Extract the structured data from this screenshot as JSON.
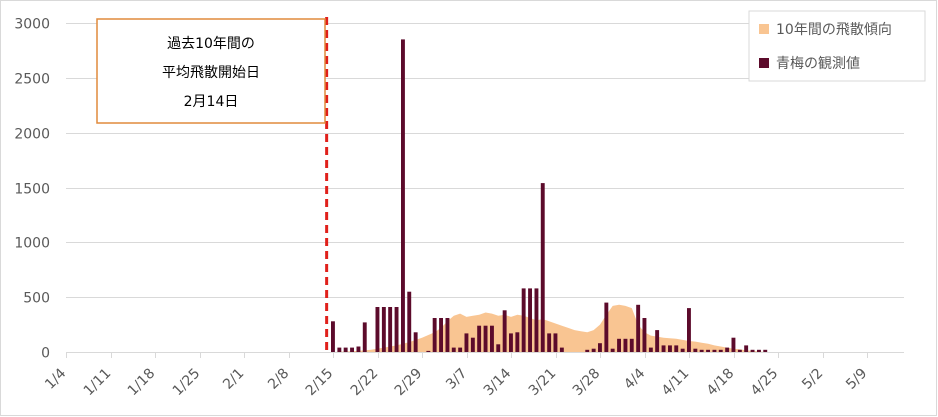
{
  "colors": {
    "observed_bar": "#5c0b2b",
    "trend_area": "#f9c592",
    "start_line": "#e0201b",
    "note_border": "#e08a3c",
    "grid": "#d9d9d9",
    "axis_text": "#595959"
  },
  "annotation": {
    "line1": "過去10年間の",
    "line2": "平均飛散開始日",
    "line3": "2月14日"
  },
  "chart_data": {
    "type": "bar",
    "x_is_date": true,
    "x_ticks": [
      "1/4",
      "1/11",
      "1/18",
      "1/25",
      "2/1",
      "2/8",
      "2/15",
      "2/22",
      "2/29",
      "3/7",
      "3/14",
      "3/21",
      "3/28",
      "4/4",
      "4/11",
      "4/18",
      "4/25",
      "5/2",
      "5/9"
    ],
    "ylim": [
      0,
      3000
    ],
    "y_ticks": [
      0,
      500,
      1000,
      1500,
      2000,
      2500,
      3000
    ],
    "grid": true,
    "legend_position": "top-right",
    "start_line_date": "2/14",
    "series": [
      {
        "name": "10年間の飛散傾向",
        "kind": "area",
        "points": [
          [
            "2/15",
            0
          ],
          [
            "2/17",
            5
          ],
          [
            "2/19",
            10
          ],
          [
            "2/21",
            20
          ],
          [
            "2/23",
            40
          ],
          [
            "2/25",
            60
          ],
          [
            "2/27",
            90
          ],
          [
            "2/29",
            130
          ],
          [
            "3/2",
            180
          ],
          [
            "3/3",
            220
          ],
          [
            "3/4",
            280
          ],
          [
            "3/5",
            330
          ],
          [
            "3/6",
            350
          ],
          [
            "3/7",
            320
          ],
          [
            "3/8",
            330
          ],
          [
            "3/9",
            340
          ],
          [
            "3/10",
            360
          ],
          [
            "3/11",
            350
          ],
          [
            "3/12",
            330
          ],
          [
            "3/13",
            340
          ],
          [
            "3/14",
            320
          ],
          [
            "3/15",
            340
          ],
          [
            "3/16",
            330
          ],
          [
            "3/17",
            310
          ],
          [
            "3/18",
            290
          ],
          [
            "3/19",
            300
          ],
          [
            "3/20",
            280
          ],
          [
            "3/21",
            260
          ],
          [
            "3/22",
            240
          ],
          [
            "3/23",
            220
          ],
          [
            "3/24",
            200
          ],
          [
            "3/25",
            190
          ],
          [
            "3/26",
            180
          ],
          [
            "3/27",
            200
          ],
          [
            "3/28",
            250
          ],
          [
            "3/29",
            340
          ],
          [
            "3/30",
            420
          ],
          [
            "3/31",
            430
          ],
          [
            "4/1",
            420
          ],
          [
            "4/2",
            400
          ],
          [
            "4/3",
            250
          ],
          [
            "4/4",
            180
          ],
          [
            "4/5",
            150
          ],
          [
            "4/6",
            140
          ],
          [
            "4/7",
            130
          ],
          [
            "4/8",
            125
          ],
          [
            "4/9",
            120
          ],
          [
            "4/10",
            110
          ],
          [
            "4/11",
            100
          ],
          [
            "4/12",
            95
          ],
          [
            "4/13",
            85
          ],
          [
            "4/14",
            75
          ],
          [
            "4/15",
            60
          ],
          [
            "4/16",
            50
          ],
          [
            "4/17",
            40
          ],
          [
            "4/18",
            30
          ],
          [
            "4/19",
            25
          ],
          [
            "4/20",
            15
          ],
          [
            "4/21",
            10
          ],
          [
            "4/22",
            5
          ],
          [
            "4/23",
            0
          ]
        ]
      },
      {
        "name": "青梅の観測値",
        "kind": "bar",
        "points": [
          [
            "2/15",
            280
          ],
          [
            "2/16",
            40
          ],
          [
            "2/17",
            40
          ],
          [
            "2/18",
            40
          ],
          [
            "2/19",
            50
          ],
          [
            "2/20",
            270
          ],
          [
            "2/22",
            410
          ],
          [
            "2/23",
            410
          ],
          [
            "2/24",
            410
          ],
          [
            "2/25",
            410
          ],
          [
            "2/26",
            2850
          ],
          [
            "2/27",
            550
          ],
          [
            "2/28",
            180
          ],
          [
            "3/1",
            10
          ],
          [
            "3/2",
            310
          ],
          [
            "3/3",
            310
          ],
          [
            "3/4",
            310
          ],
          [
            "3/5",
            40
          ],
          [
            "3/6",
            40
          ],
          [
            "3/7",
            170
          ],
          [
            "3/8",
            130
          ],
          [
            "3/9",
            240
          ],
          [
            "3/10",
            240
          ],
          [
            "3/11",
            240
          ],
          [
            "3/12",
            70
          ],
          [
            "3/13",
            380
          ],
          [
            "3/14",
            170
          ],
          [
            "3/15",
            180
          ],
          [
            "3/16",
            580
          ],
          [
            "3/17",
            580
          ],
          [
            "3/18",
            580
          ],
          [
            "3/19",
            1540
          ],
          [
            "3/20",
            170
          ],
          [
            "3/21",
            170
          ],
          [
            "3/22",
            40
          ],
          [
            "3/26",
            20
          ],
          [
            "3/27",
            30
          ],
          [
            "3/28",
            80
          ],
          [
            "3/29",
            450
          ],
          [
            "3/30",
            30
          ],
          [
            "3/31",
            120
          ],
          [
            "4/1",
            120
          ],
          [
            "4/2",
            120
          ],
          [
            "4/3",
            430
          ],
          [
            "4/4",
            310
          ],
          [
            "4/5",
            40
          ],
          [
            "4/6",
            200
          ],
          [
            "4/7",
            60
          ],
          [
            "4/8",
            60
          ],
          [
            "4/9",
            60
          ],
          [
            "4/10",
            30
          ],
          [
            "4/11",
            400
          ],
          [
            "4/12",
            30
          ],
          [
            "4/13",
            20
          ],
          [
            "4/14",
            20
          ],
          [
            "4/15",
            20
          ],
          [
            "4/16",
            20
          ],
          [
            "4/17",
            40
          ],
          [
            "4/18",
            130
          ],
          [
            "4/19",
            20
          ],
          [
            "4/20",
            60
          ],
          [
            "4/21",
            20
          ],
          [
            "4/22",
            20
          ],
          [
            "4/23",
            20
          ]
        ]
      }
    ]
  }
}
